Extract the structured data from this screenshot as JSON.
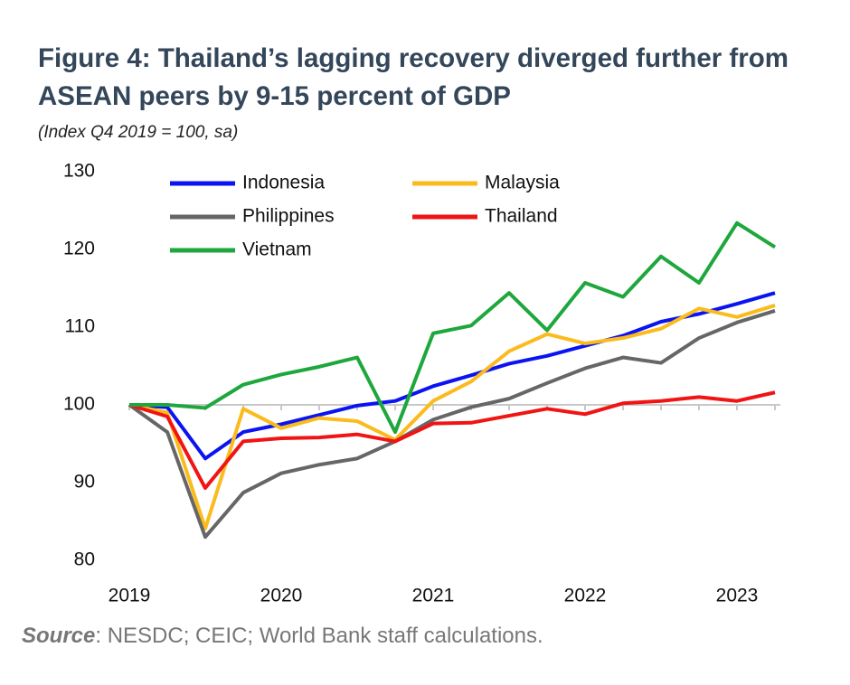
{
  "chart_data": {
    "type": "line",
    "title": "Figure 4: Thailand’s lagging recovery diverged further from ASEAN peers by 9-15 percent of GDP",
    "subtitle": "(Index Q4 2019 = 100, sa)",
    "source_label": "Source",
    "source_text": ": NESDC; CEIC; World Bank staff calculations.",
    "categories": [
      "2019",
      null,
      null,
      null,
      "2020",
      null,
      null,
      null,
      "2021",
      null,
      null,
      null,
      "2022",
      null,
      null,
      null,
      "2023",
      null
    ],
    "series": [
      {
        "name": "Indonesia",
        "color": "#0a14f0",
        "values": [
          100,
          99.7,
          93.1,
          96.5,
          97.5,
          98.7,
          99.9,
          100.5,
          102.4,
          103.8,
          105.3,
          106.3,
          107.6,
          108.9,
          110.7,
          111.7,
          113,
          114.4
        ]
      },
      {
        "name": "Malaysia",
        "color": "#fbbb1c",
        "values": [
          100,
          99,
          84.1,
          99.5,
          97,
          98.3,
          97.9,
          95.5,
          100.5,
          103,
          106.9,
          109.1,
          107.9,
          108.6,
          109.8,
          112.4,
          111.3,
          112.8
        ]
      },
      {
        "name": "Philippines",
        "color": "#666666",
        "values": [
          100,
          96.5,
          83,
          88.7,
          91.2,
          92.3,
          93.1,
          95.3,
          98.1,
          99.7,
          100.8,
          102.8,
          104.7,
          106.1,
          105.4,
          108.6,
          110.6,
          112.1
        ]
      },
      {
        "name": "Thailand",
        "color": "#f01414",
        "values": [
          100,
          98.5,
          89.3,
          95.3,
          95.7,
          95.8,
          96.2,
          95.3,
          97.6,
          97.7,
          98.6,
          99.5,
          98.8,
          100.2,
          100.5,
          101,
          100.5,
          101.6
        ]
      },
      {
        "name": "Vietnam",
        "color": "#1ea73c",
        "values": [
          100,
          100,
          99.6,
          102.6,
          103.9,
          104.9,
          106.1,
          96.5,
          109.2,
          110.2,
          114.4,
          109.6,
          115.7,
          113.9,
          119.1,
          115.7,
          123.4,
          120.3
        ]
      }
    ],
    "ylim": [
      80,
      130
    ],
    "yticks": [
      80,
      90,
      100,
      110,
      120,
      130
    ],
    "xaxis_crosses": 100,
    "grid": false
  }
}
